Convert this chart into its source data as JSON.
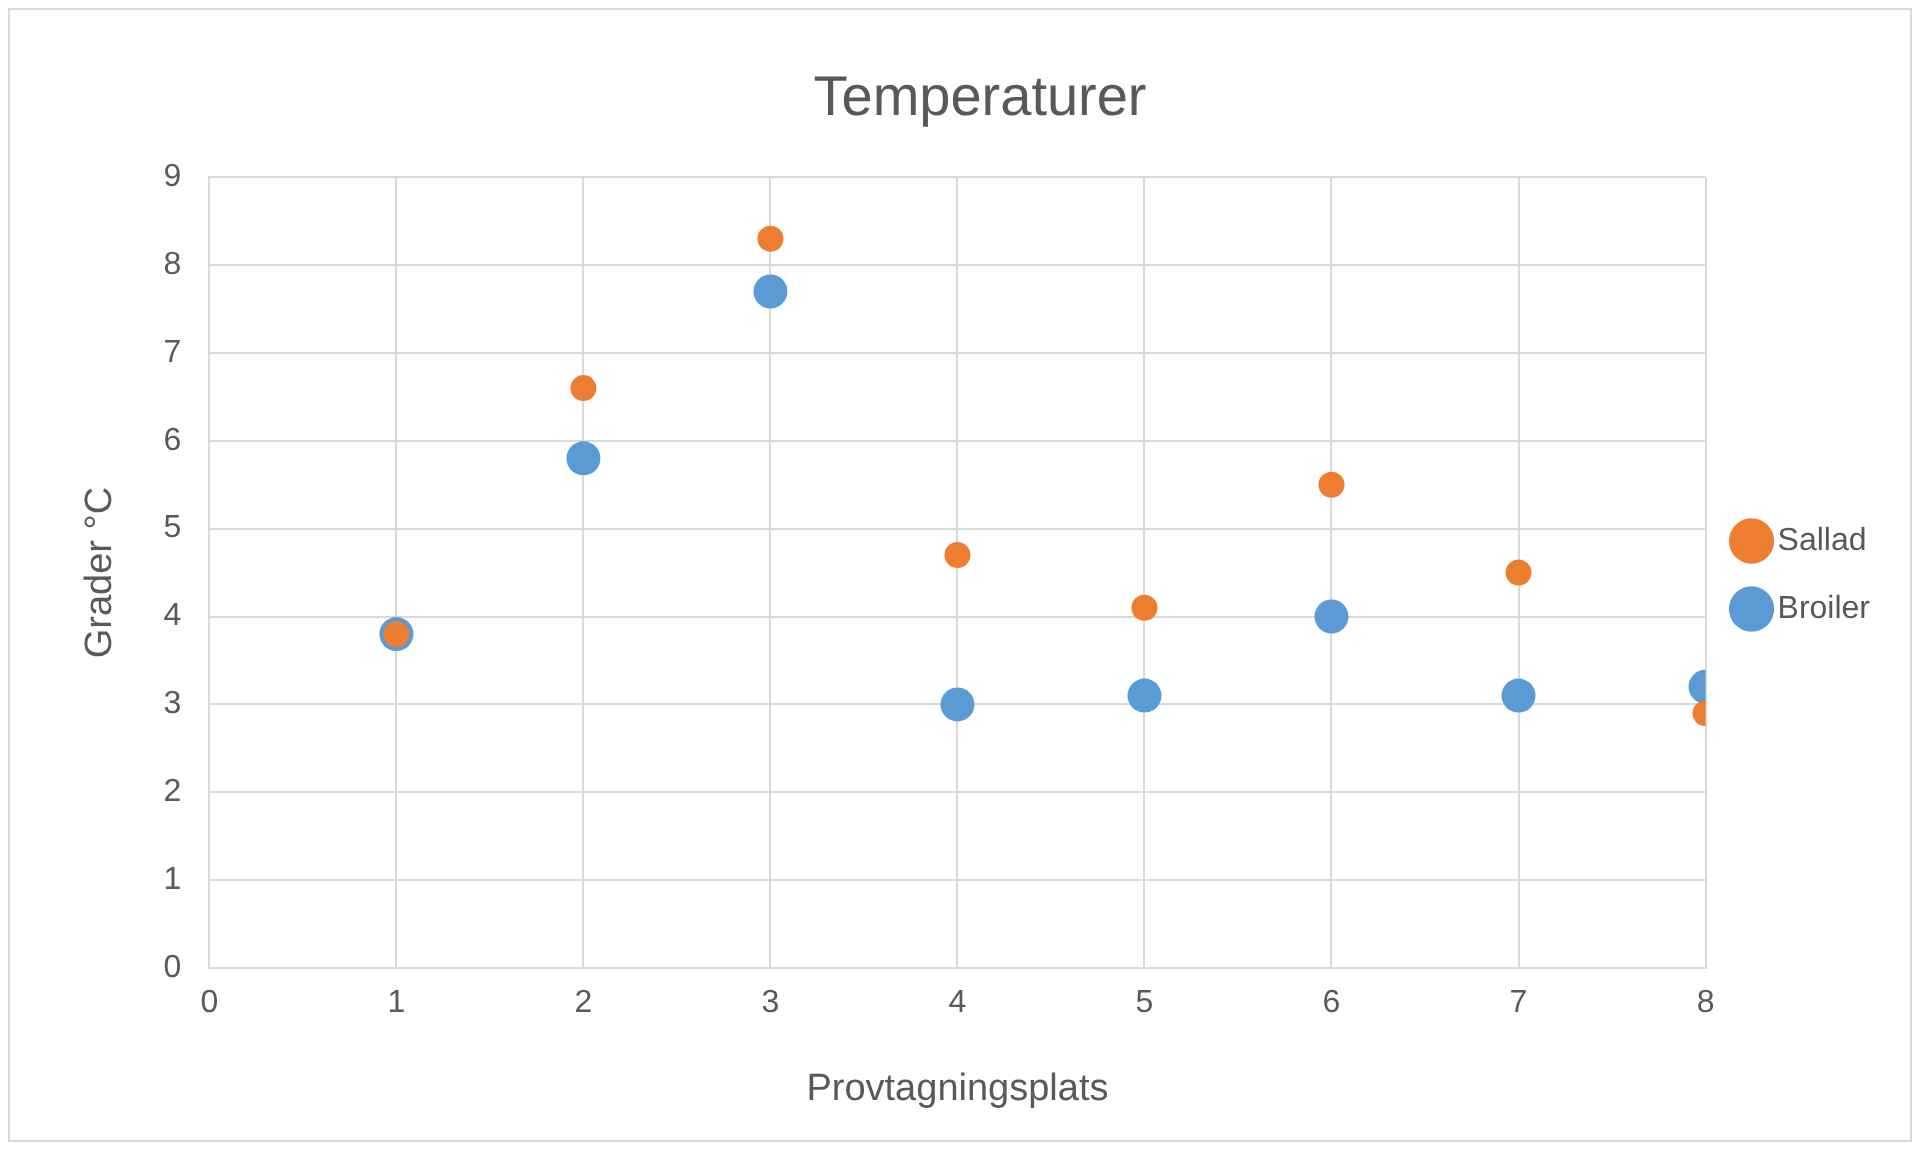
{
  "chart_data": {
    "type": "scatter",
    "title": "Temperaturer",
    "xlabel": "Provtagningsplats",
    "ylabel": "Grader °C",
    "x": [
      1,
      2,
      3,
      4,
      5,
      6,
      7,
      8
    ],
    "series": [
      {
        "name": "Broiler",
        "color": "#5b9bd5",
        "values": [
          3.8,
          5.8,
          7.7,
          3.0,
          3.1,
          4.0,
          3.1,
          3.2
        ]
      },
      {
        "name": "Sallad",
        "color": "#ed7d31",
        "values": [
          3.8,
          6.6,
          8.3,
          4.7,
          4.1,
          5.5,
          4.5,
          2.9
        ]
      }
    ],
    "xlim": [
      0,
      8
    ],
    "xticks": [
      0,
      1,
      2,
      3,
      4,
      5,
      6,
      7,
      8
    ],
    "ylim": [
      0,
      9
    ],
    "yticks": [
      0,
      1,
      2,
      3,
      4,
      5,
      6,
      7,
      8,
      9
    ],
    "grid": true,
    "legend": "right",
    "marker": "circle"
  }
}
